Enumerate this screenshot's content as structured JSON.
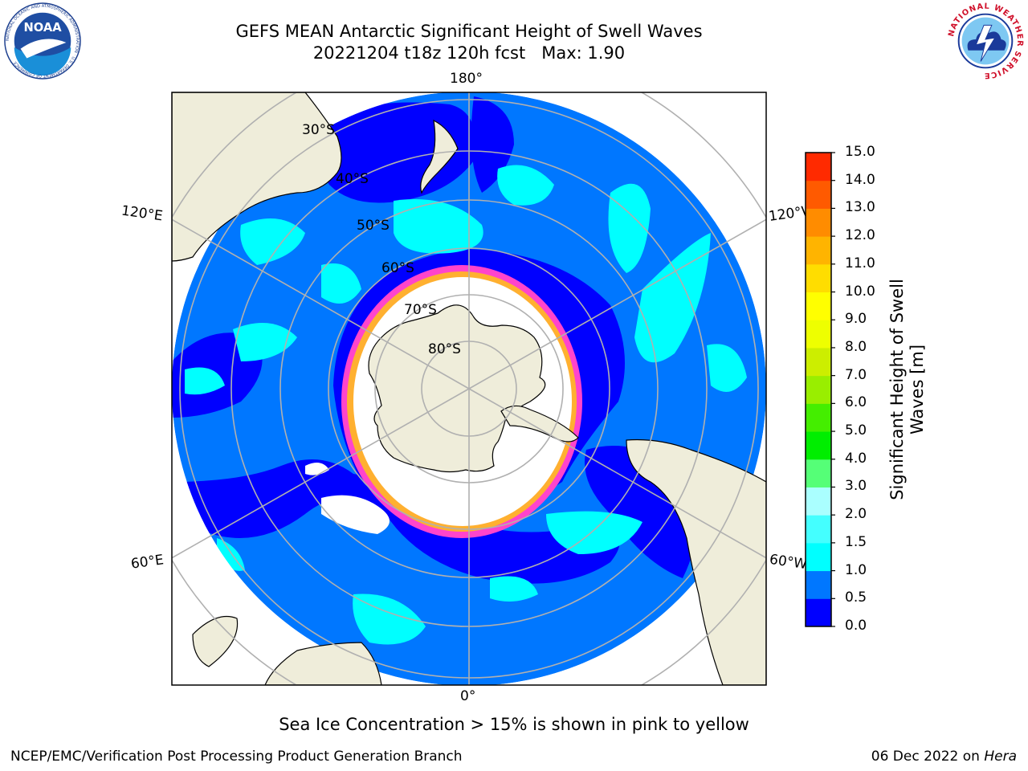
{
  "header": {
    "title_line1": "GEFS MEAN Antarctic Significant Height of Swell Waves",
    "title_line2": "20221204 t18z 120h fcst   Max: 1.90"
  },
  "logos": {
    "noaa_text": "NOAA",
    "noaa_ring": "NATIONAL OCEANIC AND ATMOSPHERIC ADMINISTRATION · U.S. DEPARTMENT OF COMMERCE",
    "nws_ring": "NATIONAL WEATHER SERVICE"
  },
  "map": {
    "longitude_labels": {
      "top": "180°",
      "bottom": "0°",
      "upper_left": "120°E",
      "lower_left": "60°E",
      "upper_right": "120°W",
      "lower_right": "60°W"
    },
    "latitude_labels": [
      "30°S",
      "40°S",
      "50°S",
      "60°S",
      "70°S",
      "80°S"
    ],
    "colors": {
      "land": "#efedda",
      "ocean_low": "#0000ff",
      "ocean_mid": "#0077ff",
      "swell_1_5": "#00ffff",
      "ice_pink": "#ff44cc",
      "ice_orange": "#ffb030",
      "ice_white": "#ffffff",
      "grid": "#b0b0b0"
    }
  },
  "colorbar": {
    "title_line1": "Significant Height of Swell",
    "title_line2": "Waves [m]",
    "tick_labels": [
      "0.0",
      "0.5",
      "1.0",
      "1.5",
      "2.0",
      "3.0",
      "4.0",
      "5.0",
      "6.0",
      "7.0",
      "8.0",
      "9.0",
      "10.0",
      "11.0",
      "12.0",
      "13.0",
      "14.0",
      "15.0"
    ],
    "colors": [
      "#0000ff",
      "#0077ff",
      "#00ffff",
      "#44ffff",
      "#aaffff",
      "#55ff77",
      "#00ee00",
      "#44ee00",
      "#99ee00",
      "#ccee00",
      "#eeff00",
      "#ffff00",
      "#ffdd00",
      "#ffb400",
      "#ff8c00",
      "#ff5a00",
      "#ff2a00",
      "#ff0000"
    ]
  },
  "footer": {
    "note": "Sea Ice Concentration > 15% is shown in pink to yellow",
    "left": "NCEP/EMC/Verification Post Processing Product Generation Branch",
    "right_prefix": "06 Dec 2022 on",
    "right_machine": "Hera"
  }
}
